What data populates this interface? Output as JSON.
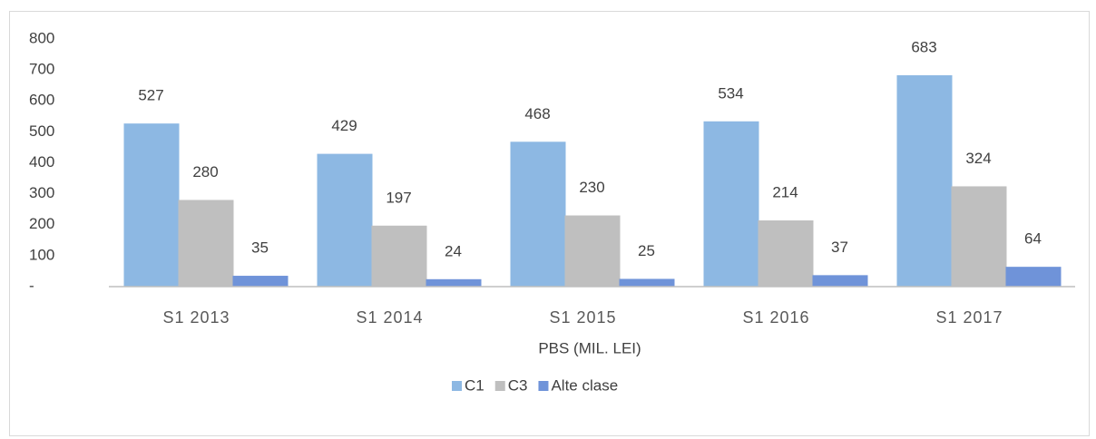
{
  "chart_data": {
    "type": "bar",
    "x_label": "PBS (MIL. LEI)",
    "categories": [
      "S1 2013",
      "S1 2014",
      "S1 2015",
      "S1 2016",
      "S1 2017"
    ],
    "series": [
      {
        "name": "C1",
        "color": "#8db8e3",
        "values": [
          527,
          429,
          468,
          534,
          683
        ]
      },
      {
        "name": "C3",
        "color": "#bfbfbf",
        "values": [
          280,
          197,
          230,
          214,
          324
        ]
      },
      {
        "name": "Alte clase",
        "color": "#6f93d9",
        "values": [
          35,
          24,
          25,
          37,
          64
        ]
      }
    ],
    "ylim": [
      0,
      800
    ],
    "yticks": [
      {
        "value": 0,
        "label": "-"
      },
      100,
      200,
      300,
      400,
      500,
      600,
      700,
      800
    ],
    "grid": false,
    "legend": "bottom"
  }
}
